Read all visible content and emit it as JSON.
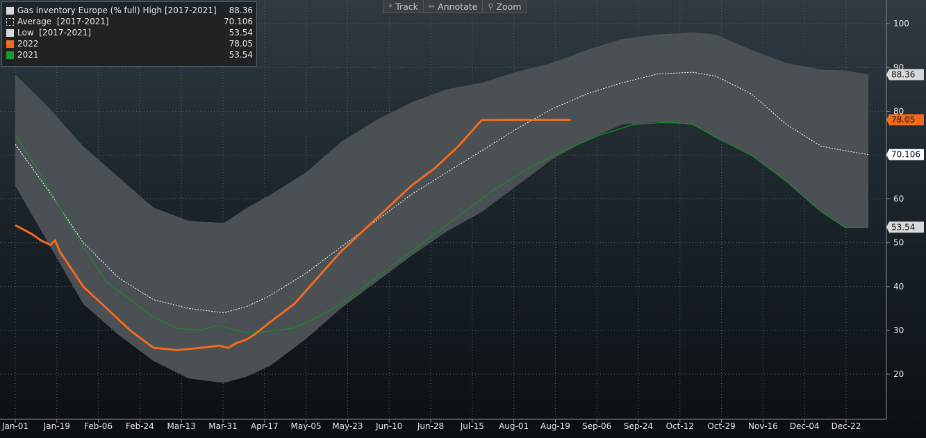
{
  "toolbar": {
    "track_label": "Track",
    "annotate_label": "Annotate",
    "zoom_label": "Zoom",
    "track_icon": "crosshair-icon",
    "annotate_icon": "pencil-icon",
    "zoom_icon": "magnifier-icon"
  },
  "legend": [
    {
      "label": "Gas inventory Europe (% full) High [2017-2021]",
      "value": "88.36",
      "color": "#d9d9d9",
      "style": "solid"
    },
    {
      "label": "Average  [2017-2021]",
      "value": "70.106",
      "color": "#ffffff",
      "style": "dotted"
    },
    {
      "label": "Low  [2017-2021]",
      "value": "53.54",
      "color": "#d9d9d9",
      "style": "solid"
    },
    {
      "label": "2022",
      "value": "78.05",
      "color": "#f26b1d",
      "style": "solid"
    },
    {
      "label": "2021",
      "value": "53.54",
      "color": "#1a9a2c",
      "style": "solid"
    }
  ],
  "chart_data": {
    "type": "area",
    "x_tick_labels": [
      "Jan-01",
      "Jan-19",
      "Feb-06",
      "Feb-24",
      "Mar-13",
      "Mar-31",
      "Apr-17",
      "May-05",
      "May-23",
      "Jun-10",
      "Jun-28",
      "Jul-15",
      "Aug-01",
      "Aug-19",
      "Sep-06",
      "Sep-24",
      "Oct-12",
      "Oct-29",
      "Nov-16",
      "Dec-04",
      "Dec-22"
    ],
    "y_ticks": [
      20,
      30,
      40,
      50,
      60,
      70,
      80,
      90,
      100
    ],
    "ylim": [
      10,
      106
    ],
    "xlim": [
      1,
      365
    ],
    "grid": true,
    "legend_position": "top-left",
    "value_tags": [
      {
        "value": "88.36",
        "y": 88.36,
        "color": "#d9d9d9",
        "text_color": "#111111"
      },
      {
        "value": "78.05",
        "y": 78.05,
        "color": "#f26b1d",
        "text_color": "#111111"
      },
      {
        "value": "70.106",
        "y": 70.106,
        "color": "#ffffff",
        "text_color": "#111111"
      },
      {
        "value": "53.54",
        "y": 53.54,
        "color": "#d9d9d9",
        "text_color": "#111111"
      }
    ],
    "series": [
      {
        "name": "Gas inventory Europe (% full) High [2017-2021]",
        "kind": "band_upper",
        "x": [
          1,
          15,
          30,
          45,
          60,
          75,
          90,
          100,
          110,
          125,
          140,
          155,
          170,
          185,
          200,
          215,
          230,
          245,
          260,
          275,
          290,
          300,
          315,
          330,
          345,
          355,
          365
        ],
        "y": [
          88.4,
          81,
          72,
          65,
          58,
          55,
          54.5,
          58,
          61,
          66,
          73,
          78,
          82,
          85,
          86.5,
          89,
          91,
          94,
          96.5,
          97.5,
          98,
          97.5,
          94,
          91,
          89.5,
          89.3,
          88.4
        ]
      },
      {
        "name": "Low [2017-2021]",
        "kind": "band_lower",
        "x": [
          1,
          15,
          30,
          45,
          60,
          75,
          90,
          100,
          110,
          125,
          140,
          155,
          170,
          185,
          200,
          215,
          230,
          245,
          260,
          275,
          290,
          300,
          315,
          330,
          345,
          355,
          365
        ],
        "y": [
          63,
          50,
          36,
          29,
          23,
          19,
          18,
          19.5,
          22,
          28,
          35,
          41,
          47,
          52.5,
          57,
          63,
          69,
          73.5,
          77,
          77.5,
          77,
          74,
          70,
          64,
          57,
          53.5,
          53.5
        ]
      },
      {
        "name": "Average  [2017-2021]",
        "kind": "dotted",
        "x": [
          1,
          15,
          30,
          45,
          60,
          75,
          90,
          100,
          110,
          125,
          140,
          155,
          170,
          185,
          200,
          215,
          230,
          245,
          260,
          275,
          290,
          300,
          315,
          330,
          345,
          355,
          365
        ],
        "y": [
          72.4,
          62,
          50,
          42,
          37,
          35,
          34,
          35.5,
          38,
          43,
          49,
          55,
          61,
          66,
          71,
          76,
          80.5,
          84,
          86.5,
          88.5,
          88.9,
          88,
          84,
          77,
          72,
          71,
          70.1
        ]
      },
      {
        "name": "2021",
        "kind": "line",
        "x": [
          1,
          10,
          20,
          30,
          40,
          50,
          60,
          70,
          80,
          88,
          95,
          100,
          105,
          112,
          120,
          130,
          140,
          150,
          160,
          175,
          190,
          205,
          220,
          235,
          250,
          265,
          280,
          290,
          300,
          315,
          330,
          345,
          355,
          365
        ],
        "y": [
          74.5,
          67,
          58,
          49,
          41,
          37,
          33,
          30.5,
          30,
          31.2,
          30,
          29.5,
          29.5,
          30,
          30.5,
          33,
          36,
          40,
          44,
          50,
          56,
          62,
          67,
          71,
          74.5,
          77,
          77.5,
          77,
          74,
          70,
          64,
          57,
          53.5,
          53.5
        ]
      },
      {
        "name": "2022",
        "kind": "line",
        "x": [
          1,
          8,
          12,
          16,
          18,
          20,
          30,
          40,
          50,
          60,
          70,
          80,
          88,
          92,
          95,
          100,
          103,
          110,
          120,
          130,
          140,
          150,
          160,
          170,
          180,
          190,
          200,
          210,
          220,
          230,
          238
        ],
        "y": [
          54,
          52,
          50.5,
          49.5,
          50.5,
          48,
          40,
          35,
          30,
          26,
          25.5,
          26,
          26.5,
          26,
          27,
          28,
          29,
          32,
          36,
          42,
          48,
          53,
          58,
          63,
          67,
          72,
          78,
          78.05,
          78.05,
          78.05,
          78.05
        ]
      }
    ]
  }
}
